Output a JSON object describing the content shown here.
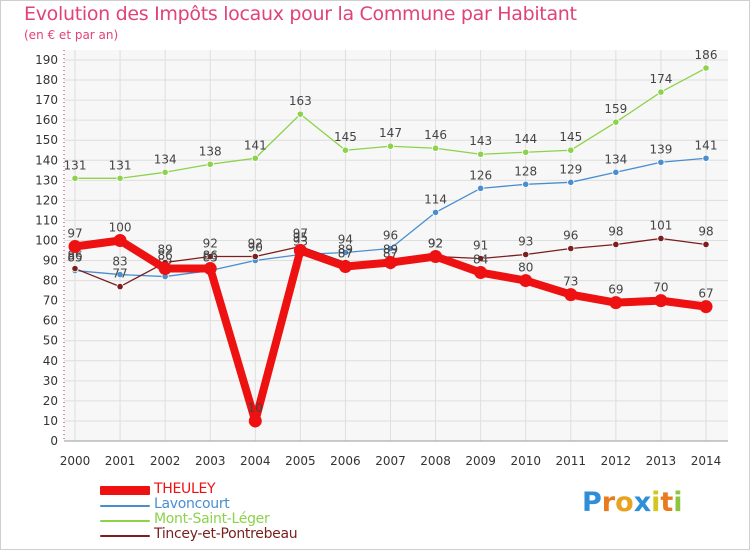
{
  "title": "Evolution des Impôts locaux pour la Commune par Habitant",
  "subtitle": "(en € et par an)",
  "logo": {
    "letters": [
      "P",
      "r",
      "o",
      "x",
      "i",
      "t",
      "i"
    ],
    "colors": [
      "#2e8ed8",
      "#e87b1e",
      "#e8a21e",
      "#2e8ed8",
      "#d4c61e",
      "#e87b1e",
      "#8cc63f"
    ]
  },
  "chart_data": {
    "type": "line",
    "title": "Evolution des Impôts locaux pour la Commune par Habitant",
    "ylabel": "(en € et par an)",
    "xlabel": "",
    "x": [
      "2000",
      "2001",
      "2002",
      "2003",
      "2004",
      "2005",
      "2006",
      "2007",
      "2008",
      "2009",
      "2010",
      "2011",
      "2012",
      "2013",
      "2014"
    ],
    "ylim": [
      0,
      190
    ],
    "yticks": [
      0,
      10,
      20,
      30,
      40,
      50,
      60,
      70,
      80,
      90,
      100,
      110,
      120,
      130,
      140,
      150,
      160,
      170,
      180,
      190
    ],
    "grid": true,
    "legend_position": "bottom-left",
    "series": [
      {
        "name": "Mont-Saint-Léger",
        "color": "#8cd24a",
        "values": [
          131,
          131,
          134,
          138,
          141,
          163,
          145,
          147,
          146,
          143,
          144,
          145,
          159,
          174,
          186
        ]
      },
      {
        "name": "Lavoncourt",
        "color": "#4a8ed0",
        "values": [
          85,
          83,
          82,
          85,
          90,
          93,
          94,
          96,
          114,
          126,
          128,
          129,
          134,
          139,
          141
        ]
      },
      {
        "name": "Tincey-et-Pontrebeau",
        "color": "#7a1e1e",
        "values": [
          86,
          77,
          89,
          92,
          92,
          97,
          89,
          87,
          92,
          91,
          93,
          96,
          98,
          101,
          98
        ]
      },
      {
        "name": "THEULEY",
        "color": "#ee1111",
        "values": [
          97,
          100,
          86,
          86,
          10,
          95,
          87,
          89,
          92,
          84,
          80,
          73,
          69,
          70,
          67
        ]
      }
    ],
    "legend_order": [
      "THEULEY",
      "Lavoncourt",
      "Mont-Saint-Léger",
      "Tincey-et-Pontrebeau"
    ]
  }
}
